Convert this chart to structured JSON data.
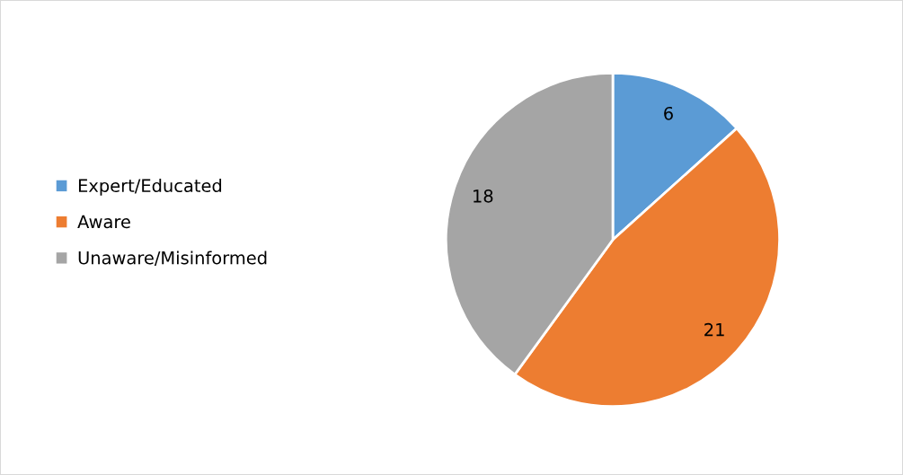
{
  "chart_data": {
    "type": "pie",
    "categories": [
      "Expert/Educated",
      "Aware",
      "Unaware/Misinformed"
    ],
    "values": [
      6,
      21,
      18
    ],
    "colors": [
      "#5b9bd5",
      "#ed7d31",
      "#a5a5a5"
    ],
    "data_labels": true,
    "legend": "left"
  }
}
